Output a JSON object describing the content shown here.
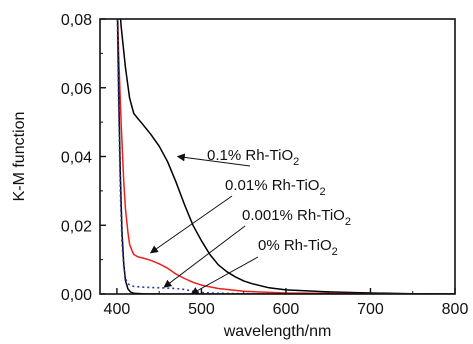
{
  "chart_data": {
    "type": "line",
    "title": "",
    "xlabel": "wavelength/nm",
    "ylabel": "K-M function",
    "xlim": [
      380,
      800
    ],
    "ylim": [
      0,
      0.08
    ],
    "x_ticks": [
      400,
      500,
      600,
      700,
      800
    ],
    "x_tick_labels": [
      "400",
      "500",
      "600",
      "700",
      "800"
    ],
    "y_ticks": [
      0,
      0.02,
      0.04,
      0.06,
      0.08
    ],
    "y_tick_labels": [
      "0,00",
      "0,02",
      "0,04",
      "0,06",
      "0,08"
    ],
    "grid": false,
    "series": [
      {
        "name": "0.1% Rh-TiO2",
        "color": "#000000",
        "style": "solid",
        "x": [
          400,
          402,
          405,
          410,
          415,
          420,
          425,
          430,
          440,
          450,
          460,
          470,
          480,
          490,
          500,
          510,
          520,
          530,
          540,
          550,
          560,
          580,
          600,
          650,
          700,
          750,
          800
        ],
        "y": [
          0.095,
          0.088,
          0.078,
          0.066,
          0.057,
          0.0525,
          0.051,
          0.0495,
          0.0465,
          0.043,
          0.0385,
          0.0325,
          0.026,
          0.02,
          0.0155,
          0.0115,
          0.0085,
          0.0065,
          0.005,
          0.0038,
          0.003,
          0.0018,
          0.0012,
          0.0006,
          0.0003,
          0.0001,
          0.0
        ]
      },
      {
        "name": "0.01% Rh-TiO2",
        "color": "#e8221b",
        "style": "solid",
        "x": [
          400,
          402,
          405,
          408,
          410,
          413,
          415,
          418,
          420,
          425,
          430,
          440,
          450,
          460,
          470,
          480,
          490,
          500,
          520,
          550,
          600,
          700,
          800
        ],
        "y": [
          0.09,
          0.07,
          0.05,
          0.033,
          0.025,
          0.018,
          0.0145,
          0.0125,
          0.0115,
          0.0108,
          0.0105,
          0.0098,
          0.0088,
          0.0075,
          0.0058,
          0.0045,
          0.0034,
          0.0026,
          0.0016,
          0.0008,
          0.0003,
          0.0001,
          0.0
        ]
      },
      {
        "name": "0.001% Rh-TiO2",
        "color": "#000000",
        "style": "solid",
        "x": [
          400,
          402,
          404,
          406,
          408,
          410,
          413,
          416,
          420,
          430,
          450,
          480,
          500,
          600,
          800
        ],
        "y": [
          0.092,
          0.06,
          0.035,
          0.018,
          0.009,
          0.004,
          0.0015,
          0.0006,
          0.0002,
          0.0001,
          0.0,
          0.0,
          0.0,
          0.0,
          0.0
        ]
      },
      {
        "name": "0% Rh-TiO2",
        "color": "#2a3aa8",
        "style": "dotted",
        "x": [
          400,
          402,
          404,
          406,
          408,
          410,
          413,
          416,
          420,
          430,
          450,
          470,
          480,
          490,
          500,
          520,
          550,
          600,
          800
        ],
        "y": [
          0.09,
          0.055,
          0.03,
          0.015,
          0.008,
          0.0045,
          0.003,
          0.0025,
          0.0022,
          0.002,
          0.0018,
          0.0016,
          0.0013,
          0.0008,
          0.0004,
          0.0002,
          0.0001,
          0.0,
          0.0
        ]
      }
    ],
    "annotations": [
      {
        "base": "0.1% Rh-TiO",
        "sub": "2",
        "x": 472,
        "y": 0.04
      },
      {
        "base": "0.01% Rh-TiO",
        "sub": "2",
        "x": 440,
        "y": 0.012
      },
      {
        "base": "0.001% Rh-TiO",
        "sub": "2",
        "x": 456,
        "y": 0.002
      },
      {
        "base": "0% Rh-TiO",
        "sub": "2",
        "x": 488,
        "y": 0.0
      }
    ]
  }
}
